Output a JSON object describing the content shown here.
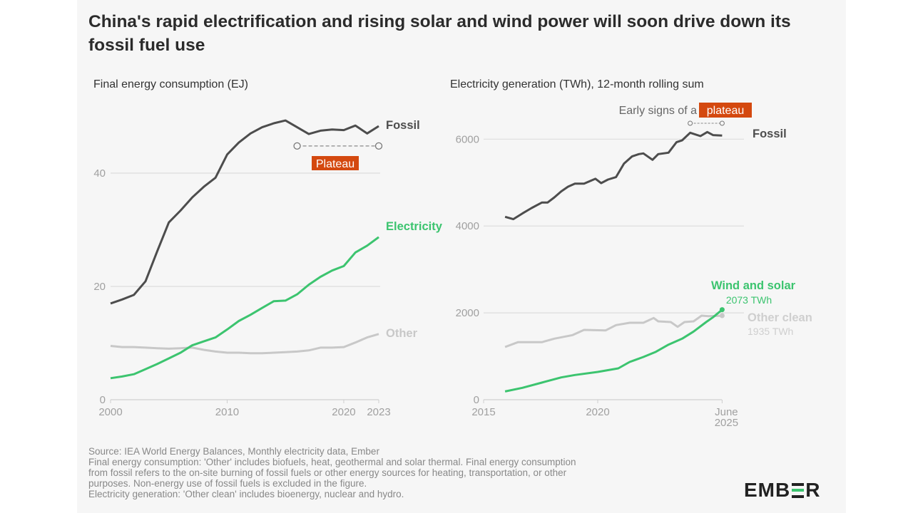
{
  "title": "China's rapid electrification and rising solar and wind power will soon drive down its fossil fuel use",
  "colors": {
    "fossil": "#4d4d4d",
    "green": "#3cc46f",
    "other": "#c8c8c8",
    "plateau": "#d4490f",
    "grid": "#dcdcdc",
    "axis": "#999999"
  },
  "chart_data": [
    {
      "type": "line",
      "title": "Final energy consumption (EJ)",
      "xlim": [
        2000,
        2023
      ],
      "ylim": [
        0,
        50
      ],
      "x_ticks": [
        2000,
        2010,
        2020,
        2023
      ],
      "y_ticks": [
        0,
        20,
        40
      ],
      "grid": true,
      "x": [
        2000,
        2001,
        2002,
        2003,
        2004,
        2005,
        2006,
        2007,
        2008,
        2009,
        2010,
        2011,
        2012,
        2013,
        2014,
        2015,
        2016,
        2017,
        2018,
        2019,
        2020,
        2021,
        2022,
        2023
      ],
      "series": [
        {
          "name": "Fossil",
          "color": "#4d4d4d",
          "values": [
            17.0,
            17.7,
            18.5,
            20.9,
            26.2,
            31.3,
            33.4,
            35.7,
            37.6,
            39.2,
            43.3,
            45.4,
            47.0,
            48.1,
            48.8,
            49.3,
            48.1,
            46.9,
            47.5,
            47.7,
            47.6,
            48.4,
            47.0,
            48.3
          ]
        },
        {
          "name": "Electricity",
          "color": "#3cc46f",
          "values": [
            3.8,
            4.1,
            4.5,
            5.4,
            6.3,
            7.3,
            8.3,
            9.6,
            10.3,
            11.0,
            12.4,
            13.9,
            15.0,
            16.2,
            17.4,
            17.5,
            18.6,
            20.3,
            21.7,
            22.8,
            23.6,
            26.0,
            27.2,
            28.7
          ]
        },
        {
          "name": "Other",
          "color": "#c8c8c8",
          "values": [
            9.5,
            9.3,
            9.3,
            9.2,
            9.1,
            9.0,
            9.1,
            9.2,
            8.8,
            8.5,
            8.3,
            8.3,
            8.2,
            8.2,
            8.3,
            8.4,
            8.5,
            8.7,
            9.2,
            9.2,
            9.3,
            10.1,
            11.0,
            11.6
          ]
        }
      ],
      "annotation": {
        "label": "Plateau",
        "x_range": [
          2016,
          2023
        ],
        "y": 44.8
      }
    },
    {
      "type": "line",
      "title": "Electricity generation (TWh), 12-month rolling sum",
      "xlim": [
        2015,
        2025.45
      ],
      "ylim": [
        0,
        6500
      ],
      "x_ticks": [
        {
          "v": 2015,
          "l": "2015"
        },
        {
          "v": 2020,
          "l": "2020"
        },
        {
          "v": 2025.45,
          "l": "June",
          "l2": "2025"
        }
      ],
      "y_ticks": [
        0,
        2000,
        4000,
        6000
      ],
      "grid": true,
      "series": [
        {
          "name": "Fossil",
          "color": "#4d4d4d",
          "points": [
            [
              2015.94,
              4212
            ],
            [
              2016.3,
              4157
            ],
            [
              2016.7,
              4288
            ],
            [
              2017.1,
              4414
            ],
            [
              2017.55,
              4540
            ],
            [
              2017.8,
              4540
            ],
            [
              2018.1,
              4660
            ],
            [
              2018.4,
              4797
            ],
            [
              2018.7,
              4906
            ],
            [
              2019.0,
              4977
            ],
            [
              2019.4,
              4977
            ],
            [
              2019.9,
              5087
            ],
            [
              2020.15,
              4988
            ],
            [
              2020.45,
              5070
            ],
            [
              2020.8,
              5125
            ],
            [
              2021.15,
              5437
            ],
            [
              2021.5,
              5601
            ],
            [
              2021.8,
              5656
            ],
            [
              2022.0,
              5672
            ],
            [
              2022.4,
              5525
            ],
            [
              2022.65,
              5656
            ],
            [
              2023.1,
              5689
            ],
            [
              2023.45,
              5929
            ],
            [
              2023.7,
              5973
            ],
            [
              2024.05,
              6148
            ],
            [
              2024.5,
              6071
            ],
            [
              2024.8,
              6164
            ],
            [
              2025.05,
              6093
            ],
            [
              2025.45,
              6082
            ]
          ]
        },
        {
          "name": "Other clean",
          "color": "#c8c8c8",
          "end_label": "1935 TWh",
          "points": [
            [
              2015.94,
              1214
            ],
            [
              2016.5,
              1324
            ],
            [
              2017.55,
              1324
            ],
            [
              2018.1,
              1406
            ],
            [
              2018.9,
              1488
            ],
            [
              2019.4,
              1608
            ],
            [
              2020.35,
              1597
            ],
            [
              2020.8,
              1717
            ],
            [
              2021.4,
              1772
            ],
            [
              2022.0,
              1772
            ],
            [
              2022.45,
              1882
            ],
            [
              2022.65,
              1805
            ],
            [
              2023.2,
              1789
            ],
            [
              2023.5,
              1679
            ],
            [
              2023.8,
              1789
            ],
            [
              2024.2,
              1805
            ],
            [
              2024.55,
              1936
            ],
            [
              2024.85,
              1925
            ],
            [
              2025.45,
              1935
            ]
          ]
        },
        {
          "name": "Wind and solar",
          "color": "#3cc46f",
          "end_label": "2073 TWh",
          "points": [
            [
              2015.94,
              191
            ],
            [
              2016.7,
              274
            ],
            [
              2017.55,
              394
            ],
            [
              2018.4,
              514
            ],
            [
              2019.0,
              569
            ],
            [
              2020.0,
              640
            ],
            [
              2020.9,
              722
            ],
            [
              2021.4,
              870
            ],
            [
              2022.0,
              985
            ],
            [
              2022.55,
              1105
            ],
            [
              2023.1,
              1269
            ],
            [
              2023.7,
              1406
            ],
            [
              2024.2,
              1570
            ],
            [
              2024.75,
              1789
            ],
            [
              2025.05,
              1898
            ],
            [
              2025.45,
              2073
            ]
          ]
        }
      ],
      "annotation": {
        "prefix": "Early signs of a ",
        "label": "plateau",
        "x_range": [
          2024.05,
          2025.45
        ],
        "y": 6380
      }
    }
  ],
  "footer": [
    "Source: IEA World Energy Balances, Monthly electricity data, Ember",
    "Final energy consumption: 'Other' includes biofuels, heat, geothermal and solar thermal. Final energy consumption",
    "from fossil refers to the on-site burning of fossil fuels or other energy sources for heating, transportation, or other",
    "purposes. Non-energy use of fossil fuels is excluded in the figure.",
    "Electricity generation: 'Other clean' includes bioenergy, nuclear and hydro."
  ],
  "logo": "EMBER"
}
